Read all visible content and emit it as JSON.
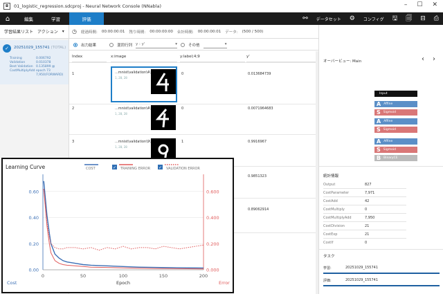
{
  "window": {
    "title": "01_logistic_regression.sdcproj - Neural Network Console (NNabla)",
    "icon_text": "◘"
  },
  "menubar": {
    "tabs": [
      "編集",
      "学習",
      "評価"
    ],
    "active_tab": "評価",
    "dataset_label": "データセット",
    "config_label": "コンフィグ"
  },
  "left": {
    "header_label": "学習結果リスト",
    "action_label": "アクション",
    "job_name": "20251029_155741",
    "job_suffix": "(TOTAL)",
    "stats": [
      {
        "k": "Training",
        "v": "0.006792"
      },
      {
        "k": "Validation",
        "v": "0.010378"
      },
      {
        "k": "Best Validation",
        "v": "0.135899 @"
      },
      {
        "k": "CostMultiplyAdd",
        "v": "epoch 73"
      },
      {
        "k": "",
        "v": "7,950(FORWARD)"
      }
    ]
  },
  "toolbar": {
    "elapsed_label": "経過時間:",
    "elapsed_value": "00:00:00:01",
    "remaining_label": "残り時間:",
    "remaining_value": "00:00:00:00",
    "total_label": "合計時間:",
    "total_value": "00:00:00:01",
    "data_label": "データ:",
    "data_value": "(500 / 500)"
  },
  "options": {
    "radio1": "出力結果",
    "radio2": "混同行列",
    "select1": "y : y'",
    "radio3": "その他"
  },
  "table": {
    "columns": [
      "Index",
      "x:image",
      "y:label;4;9",
      "y'"
    ],
    "rows": [
      {
        "index": "1",
        "file": "...mnist\\validation\\4\\5.png",
        "dims": "1, 28, 28",
        "label": "0",
        "pred": "0.013684739"
      },
      {
        "index": "2",
        "file": "...mnist\\validation\\4\\6.png",
        "dims": "1, 28, 28",
        "label": "0",
        "pred": "0.0071964683"
      },
      {
        "index": "3",
        "file": "...mnist\\validation\\9\\7.png",
        "dims": "1, 28, 28",
        "label": "1",
        "pred": "0.9916967"
      },
      {
        "index": "",
        "file": "",
        "dims": "",
        "label": "",
        "pred": "0.9851323"
      },
      {
        "index": "",
        "file": "",
        "dims": "",
        "label": "",
        "pred": "0.89062914"
      }
    ]
  },
  "right": {
    "overview_title": "オーバービュー: Main",
    "stats_title": "統計情報",
    "stats": [
      {
        "k": "Output",
        "v": "827"
      },
      {
        "k": "CostParameter",
        "v": "7,971"
      },
      {
        "k": "CostAdd",
        "v": "42"
      },
      {
        "k": "CostMultiply",
        "v": "0"
      },
      {
        "k": "CostMultiplyAdd",
        "v": "7,950"
      },
      {
        "k": "CostDivision",
        "v": "21"
      },
      {
        "k": "CostExp",
        "v": "21"
      },
      {
        "k": "CostIf",
        "v": "0"
      }
    ],
    "task_title": "タスク",
    "tasks": [
      {
        "k": "学習:",
        "v": "20251029_155741"
      },
      {
        "k": "評価:",
        "v": "20251029_155741"
      }
    ],
    "blocks": [
      {
        "letter": "",
        "name": "Input",
        "color": "#111111"
      },
      {
        "letter": "A",
        "name": "Affine",
        "color": "#5b8fc7"
      },
      {
        "letter": "S",
        "name": "Sigmoid",
        "color": "#d97777"
      },
      {
        "letter": "A",
        "name": "Affine",
        "color": "#5b8fc7"
      },
      {
        "letter": "S",
        "name": "Sigmoid",
        "color": "#d97777"
      },
      {
        "letter": "A",
        "name": "Affine",
        "color": "#5b8fc7"
      },
      {
        "letter": "S",
        "name": "Sigmoid",
        "color": "#d97777"
      },
      {
        "letter": "B",
        "name": "BinaryCE",
        "color": "#bbbbbb"
      }
    ]
  },
  "chart_data": {
    "type": "line",
    "title": "Learning Curve",
    "xlabel": "Epoch",
    "ylabel_left": "Cost",
    "ylabel_right": "Error",
    "xlim": [
      0,
      200
    ],
    "ylim_left": [
      0.0,
      0.7
    ],
    "ylim_right": [
      0.0,
      0.7
    ],
    "x_ticks": [
      0,
      50,
      100,
      150,
      200
    ],
    "y_ticks_left": [
      "0.60",
      "0.40",
      "0.20",
      "0.00"
    ],
    "y_ticks_right": [
      "0.600",
      "0.400",
      "0.200",
      "0.000"
    ],
    "legend": [
      "COST",
      "TRAINING ERROR",
      "VALIDATION ERROR"
    ],
    "colors": {
      "cost": "#3b6fb5",
      "training_error": "#e05a5a",
      "validation_error": "#e05a5a"
    },
    "series": [
      {
        "name": "COST",
        "axis": "left",
        "x": [
          1,
          3,
          5,
          8,
          10,
          15,
          20,
          25,
          30,
          40,
          50,
          60,
          80,
          100,
          120,
          140,
          160,
          180,
          200
        ],
        "y": [
          0.68,
          0.55,
          0.42,
          0.28,
          0.2,
          0.12,
          0.09,
          0.07,
          0.06,
          0.05,
          0.04,
          0.035,
          0.03,
          0.025,
          0.02,
          0.018,
          0.016,
          0.015,
          0.014
        ]
      },
      {
        "name": "TRAINING ERROR",
        "axis": "right",
        "x": [
          1,
          3,
          5,
          8,
          10,
          15,
          20,
          25,
          30,
          40,
          50,
          60,
          80,
          100,
          120,
          140,
          160,
          180,
          200
        ],
        "y": [
          0.62,
          0.48,
          0.34,
          0.2,
          0.13,
          0.07,
          0.05,
          0.04,
          0.035,
          0.03,
          0.025,
          0.02,
          0.018,
          0.015,
          0.012,
          0.01,
          0.009,
          0.008,
          0.007
        ]
      },
      {
        "name": "VALIDATION ERROR",
        "axis": "right",
        "x": [
          1,
          3,
          5,
          8,
          10,
          15,
          20,
          25,
          30,
          40,
          50,
          60,
          70,
          80,
          90,
          100,
          110,
          120,
          130,
          140,
          150,
          160,
          170,
          180,
          190,
          200
        ],
        "y": [
          0.62,
          0.5,
          0.36,
          0.25,
          0.2,
          0.17,
          0.16,
          0.16,
          0.17,
          0.17,
          0.16,
          0.17,
          0.15,
          0.17,
          0.16,
          0.18,
          0.16,
          0.17,
          0.17,
          0.16,
          0.18,
          0.17,
          0.16,
          0.17,
          0.18,
          0.19
        ]
      }
    ]
  }
}
